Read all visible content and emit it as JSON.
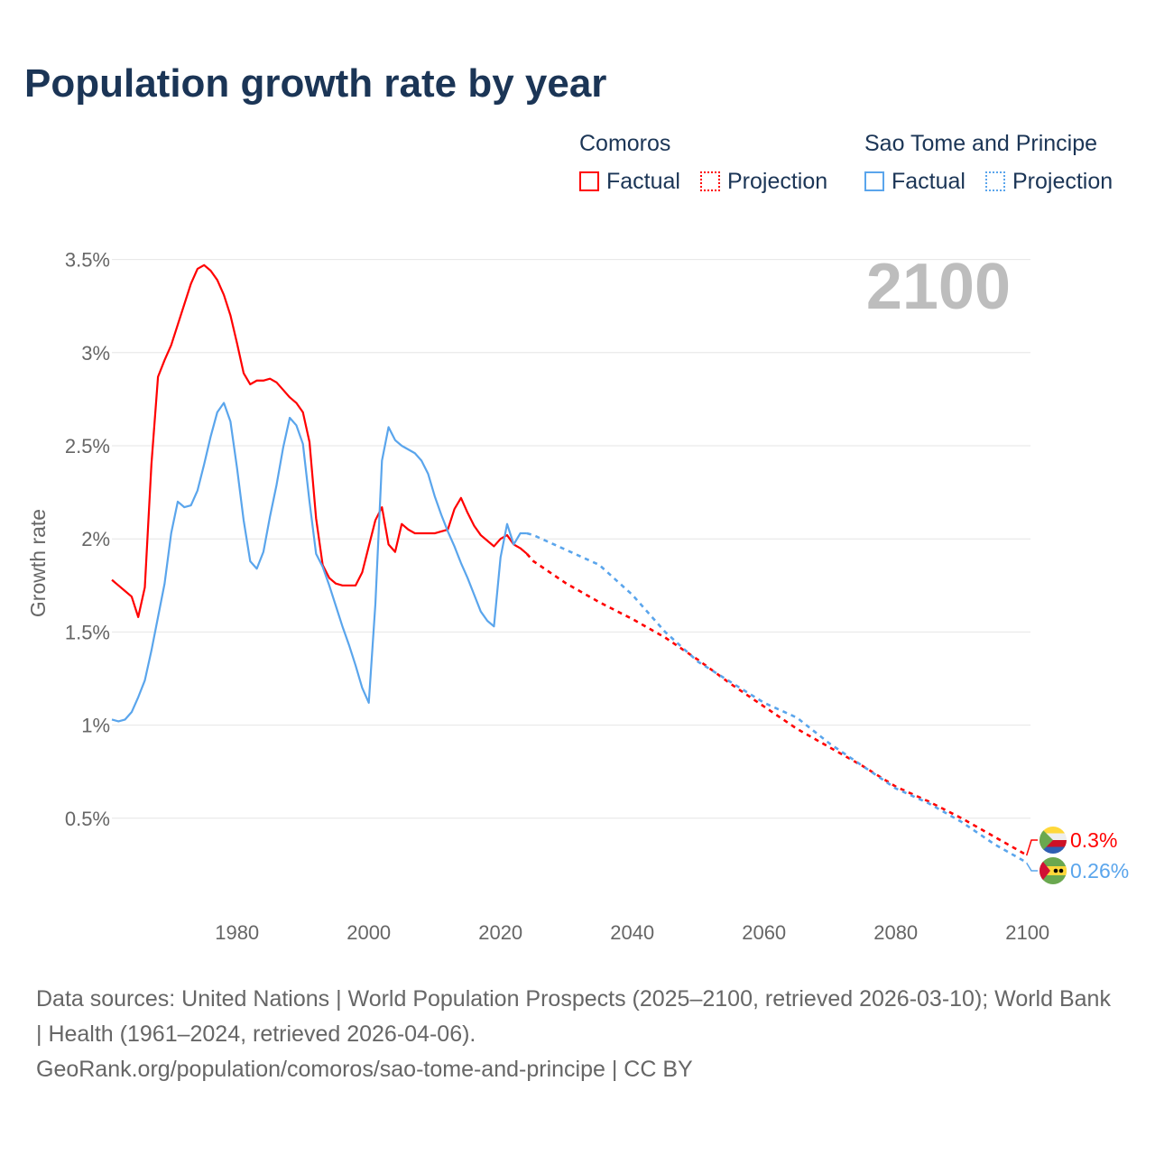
{
  "title": "Population growth rate by year",
  "legend": [
    {
      "group": "Comoros",
      "factual": "Factual",
      "projection": "Projection",
      "color": "#ff0000"
    },
    {
      "group": "Sao Tome and Principe",
      "factual": "Factual",
      "projection": "Projection",
      "color": "#5aa5ec"
    }
  ],
  "year_label": "2100",
  "sources": {
    "line1": "Data sources: United Nations | World Population Prospects (2025–2100, retrieved 2026-03-10); World Bank | Health (1961–2024, retrieved 2026-04-06).",
    "line2": "GeoRank.org/population/comoros/sao-tome-and-principe | CC BY"
  },
  "chart_data": {
    "type": "line",
    "title": "Population growth rate by year",
    "xlabel": "",
    "ylabel": "Growth rate",
    "xlim": [
      1961,
      2100
    ],
    "ylim": [
      0,
      3.6
    ],
    "xticks": [
      "1980",
      "2000",
      "2020",
      "2040",
      "2060",
      "2080",
      "2100"
    ],
    "yticks": [
      "0.5%",
      "1%",
      "1.5%",
      "2%",
      "2.5%",
      "3%",
      "3.5%"
    ],
    "grid": true,
    "series": [
      {
        "name": "Comoros",
        "color": "#ff0000",
        "end_label": "0.3%",
        "factual_start": 1961,
        "factual": [
          1.78,
          1.75,
          1.72,
          1.69,
          1.58,
          1.74,
          2.4,
          2.87,
          2.96,
          3.04,
          3.15,
          3.26,
          3.37,
          3.45,
          3.47,
          3.44,
          3.39,
          3.31,
          3.2,
          3.05,
          2.89,
          2.83,
          2.85,
          2.85,
          2.86,
          2.84,
          2.8,
          2.76,
          2.73,
          2.68,
          2.52,
          2.11,
          1.86,
          1.79,
          1.76,
          1.75,
          1.75,
          1.75,
          1.82,
          1.96,
          2.1,
          2.17,
          1.97,
          1.93,
          2.08,
          2.05,
          2.03,
          2.03,
          2.03,
          2.03,
          2.04,
          2.05,
          2.16,
          2.22,
          2.14,
          2.07,
          2.02,
          1.99,
          1.96,
          2.0,
          2.02,
          1.97,
          1.95,
          1.92
        ],
        "projection_x": [
          2024,
          2025,
          2030,
          2035,
          2040,
          2045,
          2050,
          2055,
          2060,
          2065,
          2070,
          2075,
          2080,
          2085,
          2090,
          2095,
          2100
        ],
        "projection": [
          1.92,
          1.88,
          1.76,
          1.66,
          1.57,
          1.47,
          1.35,
          1.22,
          1.1,
          0.98,
          0.88,
          0.78,
          0.67,
          0.59,
          0.5,
          0.4,
          0.3
        ]
      },
      {
        "name": "Sao Tome and Principe",
        "color": "#5aa5ec",
        "end_label": "0.26%",
        "factual_start": 1961,
        "factual": [
          1.03,
          1.02,
          1.03,
          1.07,
          1.15,
          1.24,
          1.4,
          1.58,
          1.76,
          2.03,
          2.2,
          2.17,
          2.18,
          2.26,
          2.4,
          2.55,
          2.68,
          2.73,
          2.63,
          2.38,
          2.1,
          1.88,
          1.84,
          1.93,
          2.12,
          2.29,
          2.49,
          2.65,
          2.61,
          2.51,
          2.2,
          1.92,
          1.85,
          1.75,
          1.64,
          1.53,
          1.43,
          1.32,
          1.2,
          1.12,
          1.65,
          2.42,
          2.6,
          2.53,
          2.5,
          2.48,
          2.46,
          2.42,
          2.35,
          2.23,
          2.13,
          2.04,
          1.96,
          1.87,
          1.79,
          1.7,
          1.61,
          1.56,
          1.53,
          1.9,
          2.08,
          1.97,
          2.03,
          2.03
        ],
        "projection_x": [
          2024,
          2025,
          2030,
          2035,
          2040,
          2045,
          2050,
          2055,
          2060,
          2065,
          2070,
          2075,
          2080,
          2085,
          2090,
          2095,
          2100
        ],
        "projection": [
          2.03,
          2.02,
          1.94,
          1.86,
          1.7,
          1.5,
          1.34,
          1.23,
          1.12,
          1.04,
          0.9,
          0.78,
          0.66,
          0.58,
          0.48,
          0.36,
          0.26
        ]
      }
    ]
  }
}
